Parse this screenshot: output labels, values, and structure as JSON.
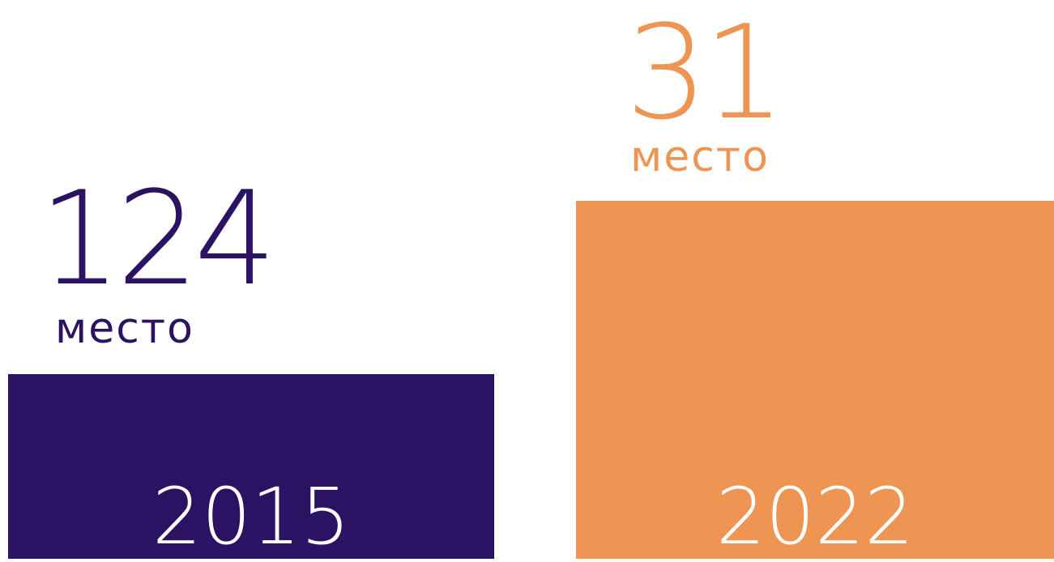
{
  "items": [
    {
      "rank": "124",
      "unit": "место",
      "year": "2015"
    },
    {
      "rank": "31",
      "unit": "место",
      "year": "2022"
    }
  ]
}
